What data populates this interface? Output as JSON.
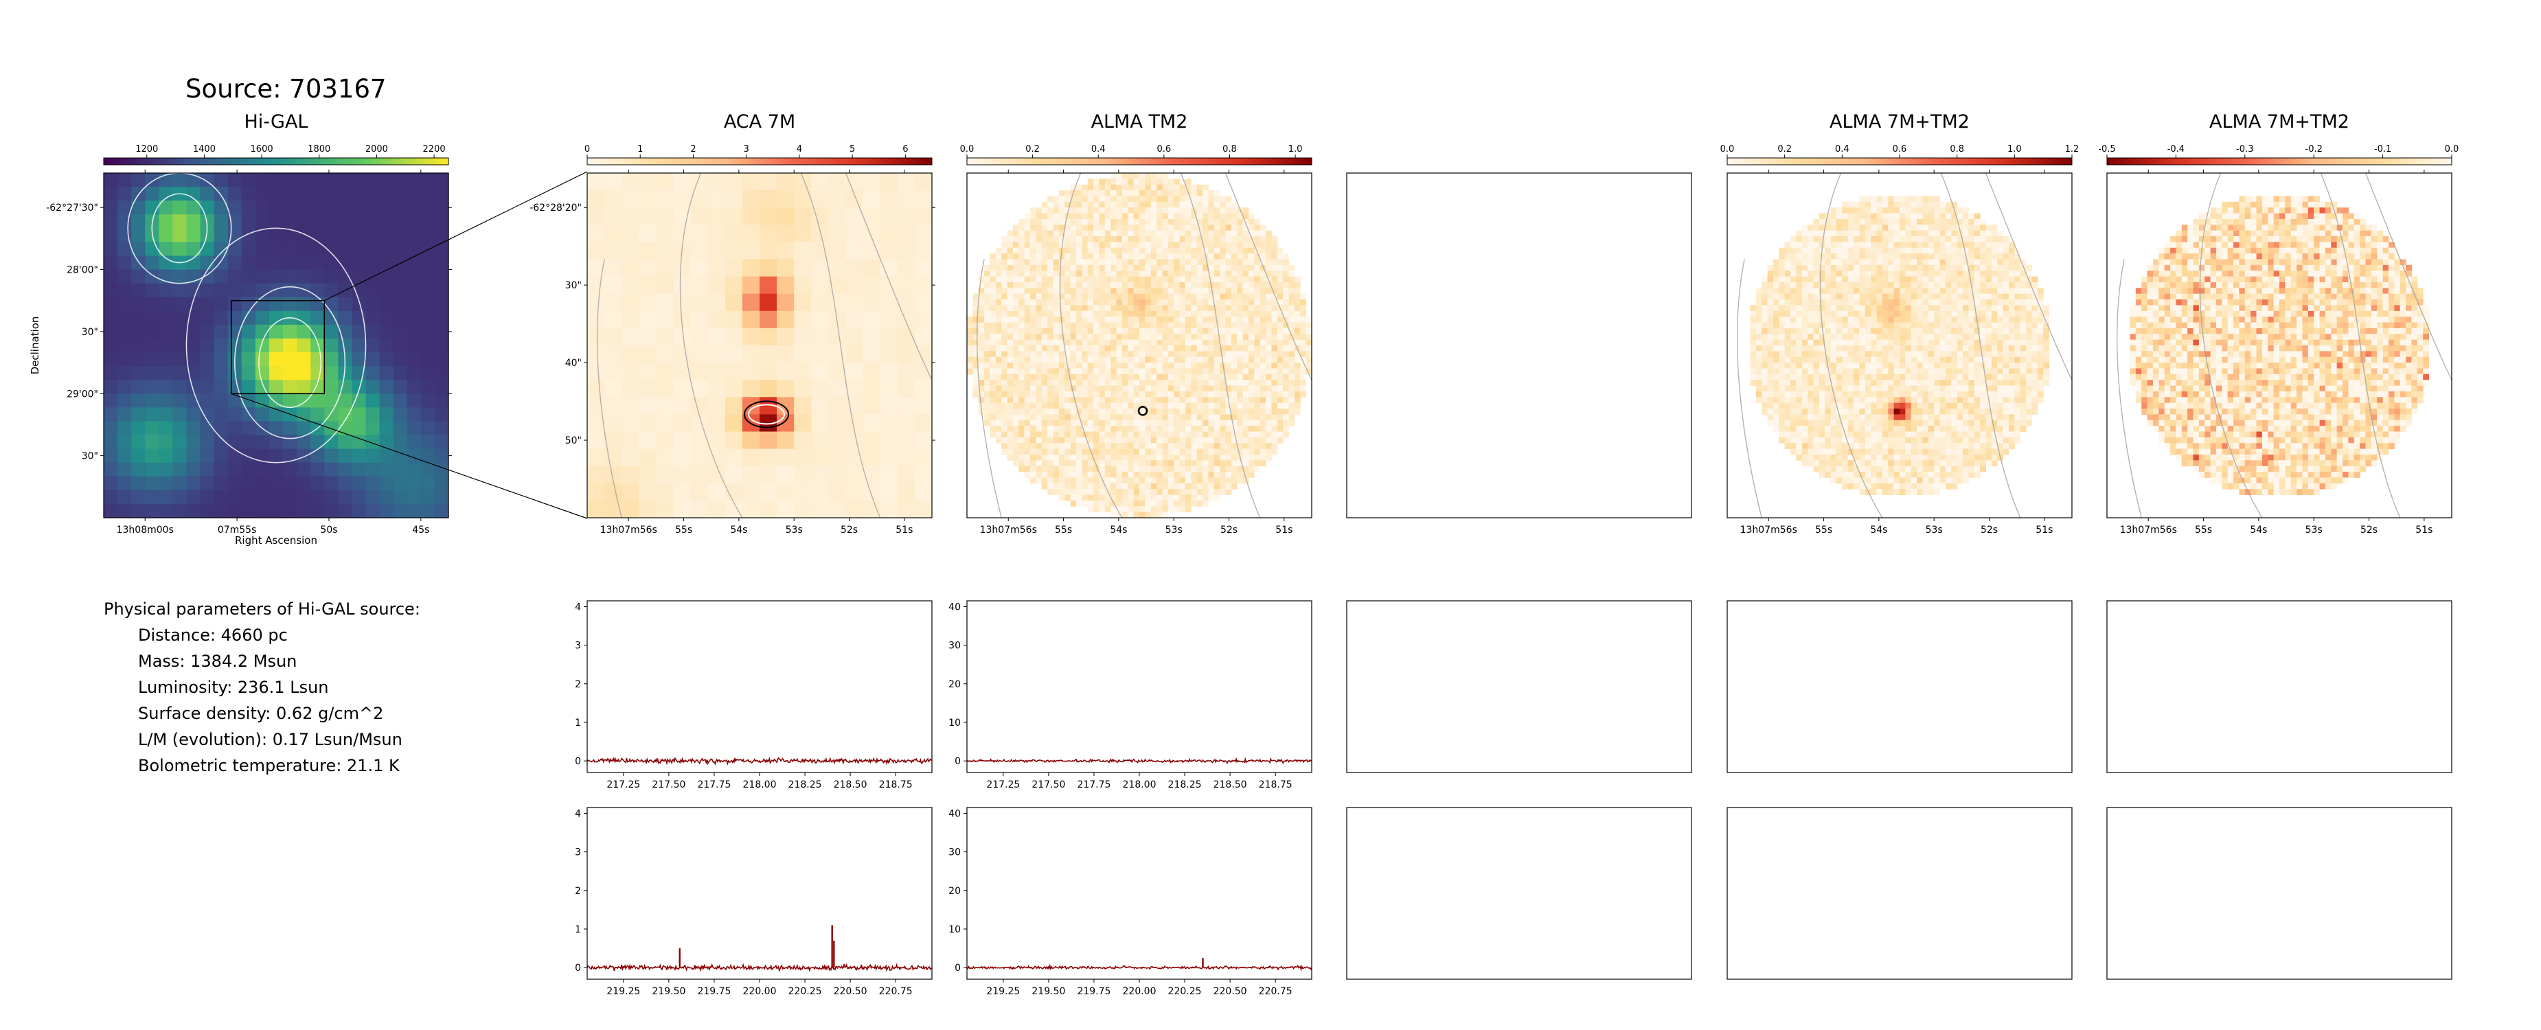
{
  "source_title": "Source: 703167",
  "physical_parameters": {
    "heading": "Physical parameters of Hi-GAL source:",
    "lines": [
      "Distance: 4660 pc",
      "Mass: 1384.2 Msun",
      "Luminosity: 236.1 Lsun",
      "Surface density: 0.62 g/cm^2",
      "L/M (evolution): 0.17 Lsun/Msun",
      "Bolometric temperature: 21.1 K"
    ]
  },
  "colors": {
    "spectrum_line": "#8b0000",
    "contour_white": "#ffffff",
    "contour_grey": "#a0a0a0"
  },
  "chart_data": [
    {
      "type": "heatmap",
      "title": "Hi-GAL",
      "colormap": "viridis",
      "colorbar_ticks": [
        "1200",
        "1400",
        "1600",
        "1800",
        "2000",
        "2200"
      ],
      "colorbar_range": [
        1050,
        2250
      ],
      "xlabel": "Right Ascension",
      "ylabel": "Declination",
      "x_ticks": [
        "13h08m00s",
        "07m55s",
        "50s",
        "45s"
      ],
      "y_ticks": [
        "-62°27'30\"",
        "28'00\"",
        "30\"",
        "29'00\"",
        "30\""
      ],
      "peaks": [
        {
          "ra_offset": 0.54,
          "dec_offset": 0.55,
          "value": 2200
        },
        {
          "ra_offset": 0.22,
          "dec_offset": 0.16,
          "value": 1950
        }
      ],
      "zoom_box": true
    },
    {
      "type": "heatmap",
      "title": "ACA 7M",
      "colormap": "OrRd",
      "colorbar_ticks": [
        "0",
        "1",
        "2",
        "3",
        "4",
        "5",
        "6"
      ],
      "colorbar_range": [
        0,
        6.5
      ],
      "x_ticks": [
        "13h07m56s",
        "55s",
        "54s",
        "53s",
        "52s",
        "51s"
      ],
      "y_ticks": [
        "-62°28'20\"",
        "30\"",
        "40\"",
        "50\""
      ]
    },
    {
      "type": "heatmap",
      "title": "ALMA TM2",
      "colormap": "OrRd",
      "colorbar_ticks": [
        "0.0",
        "0.2",
        "0.4",
        "0.6",
        "0.8",
        "1.0"
      ],
      "colorbar_range": [
        0,
        1.05
      ],
      "x_ticks": [
        "13h07m56s",
        "55s",
        "54s",
        "53s",
        "52s",
        "51s"
      ]
    },
    {
      "type": "heatmap",
      "title": "ALMA 7M+TM2",
      "colormap": "OrRd",
      "colorbar_ticks": [
        "0.0",
        "0.2",
        "0.4",
        "0.6",
        "0.8",
        "1.0",
        "1.2"
      ],
      "colorbar_range": [
        0,
        1.2
      ],
      "x_ticks": [
        "13h07m56s",
        "55s",
        "54s",
        "53s",
        "52s",
        "51s"
      ]
    },
    {
      "type": "heatmap",
      "title": "ALMA 7M+TM2",
      "colormap": "OrRd_r",
      "colorbar_ticks": [
        "-0.5",
        "-0.4",
        "-0.3",
        "-0.2",
        "-0.1",
        "0.0"
      ],
      "colorbar_range": [
        -0.5,
        0
      ],
      "x_ticks": [
        "13h07m56s",
        "55s",
        "54s",
        "53s",
        "52s",
        "51s"
      ]
    },
    {
      "type": "line",
      "panel": "ACA 7M spectrum, upper band",
      "x_ticks": [
        "217.25",
        "217.50",
        "217.75",
        "218.00",
        "218.25",
        "218.50",
        "218.75"
      ],
      "xlim": [
        217.05,
        218.95
      ],
      "y_ticks": [
        "0",
        "1",
        "2",
        "3",
        "4"
      ],
      "ylim": [
        -0.3,
        4.15
      ],
      "baseline": 0,
      "noise": 0.06,
      "spikes": []
    },
    {
      "type": "line",
      "panel": "ALMA TM2 spectrum, upper band",
      "x_ticks": [
        "217.25",
        "217.50",
        "217.75",
        "218.00",
        "218.25",
        "218.50",
        "218.75"
      ],
      "xlim": [
        217.05,
        218.95
      ],
      "y_ticks": [
        "0",
        "10",
        "20",
        "30",
        "40"
      ],
      "ylim": [
        -3,
        41.5
      ],
      "baseline": 0,
      "noise": 0.35,
      "spikes": []
    },
    {
      "type": "line",
      "panel": "ACA 7M spectrum, lower band",
      "x_ticks": [
        "219.25",
        "219.50",
        "219.75",
        "220.00",
        "220.25",
        "220.50",
        "220.75"
      ],
      "xlim": [
        219.05,
        220.95
      ],
      "y_ticks": [
        "0",
        "1",
        "2",
        "3",
        "4"
      ],
      "ylim": [
        -0.3,
        4.15
      ],
      "baseline": 0,
      "noise": 0.06,
      "spikes": [
        {
          "x": 219.56,
          "y": 0.5
        },
        {
          "x": 220.4,
          "y": 1.1
        },
        {
          "x": 220.41,
          "y": 0.7
        }
      ]
    },
    {
      "type": "line",
      "panel": "ALMA TM2 spectrum, lower band",
      "x_ticks": [
        "219.25",
        "219.50",
        "219.75",
        "220.00",
        "220.25",
        "220.50",
        "220.75"
      ],
      "xlim": [
        219.05,
        220.95
      ],
      "y_ticks": [
        "0",
        "10",
        "20",
        "30",
        "40"
      ],
      "ylim": [
        -3,
        41.5
      ],
      "baseline": 0,
      "noise": 0.35,
      "spikes": [
        {
          "x": 220.35,
          "y": 2.5
        }
      ]
    }
  ]
}
